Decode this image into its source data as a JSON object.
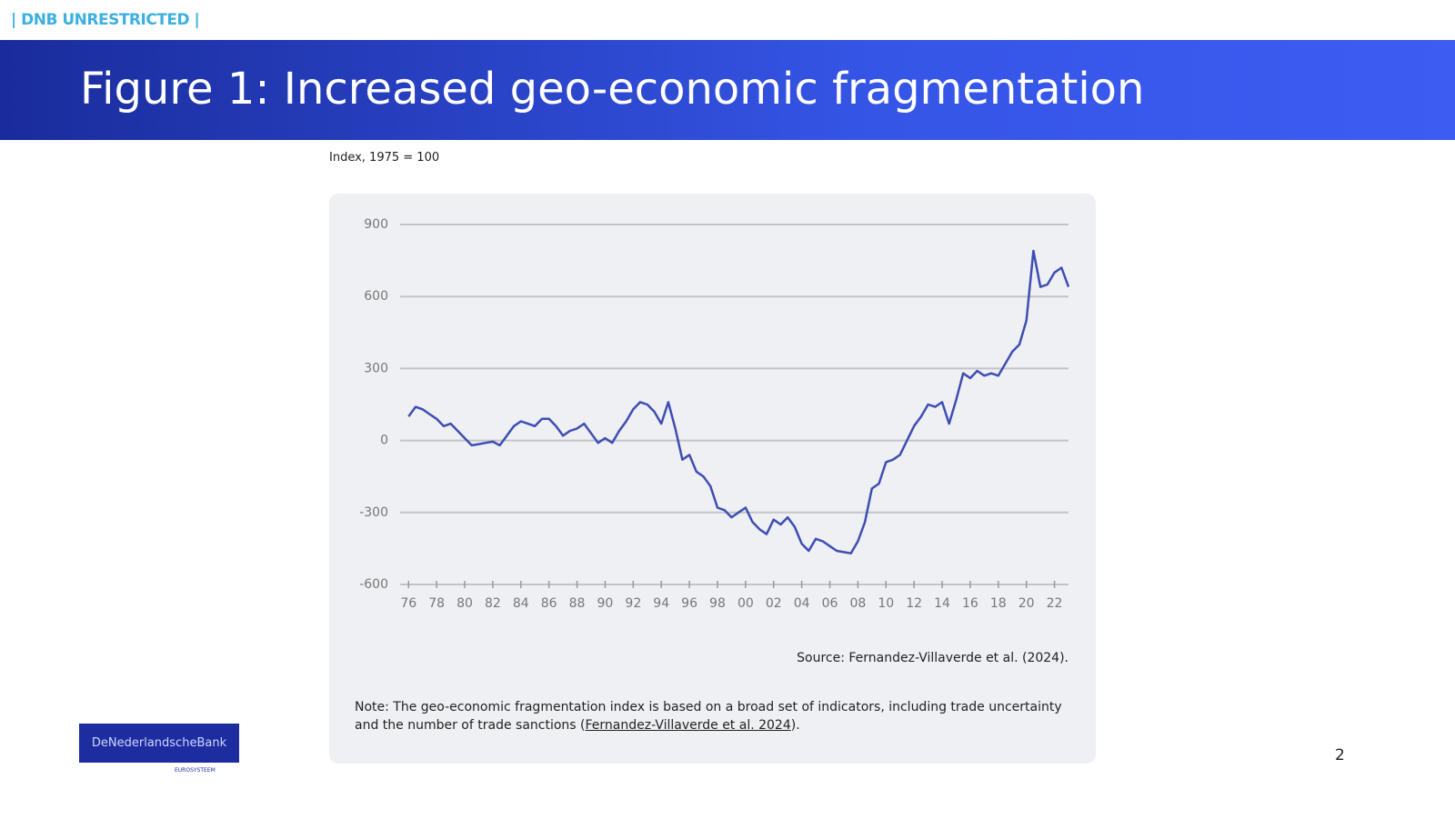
{
  "header": {
    "classification": "| DNB UNRESTRICTED |",
    "title": "Figure 1: Increased geo-economic fragmentation"
  },
  "chart_data": {
    "type": "line",
    "y_label": "Index, 1975 = 100",
    "x": [
      1976,
      1976.5,
      1977,
      1977.5,
      1978,
      1978.5,
      1979,
      1979.5,
      1980,
      1980.5,
      1981,
      1981.5,
      1982,
      1982.5,
      1983,
      1983.5,
      1984,
      1984.5,
      1985,
      1985.5,
      1986,
      1986.5,
      1987,
      1987.5,
      1988,
      1988.5,
      1989,
      1989.5,
      1990,
      1990.5,
      1991,
      1991.5,
      1992,
      1992.5,
      1993,
      1993.5,
      1994,
      1994.5,
      1995,
      1995.5,
      1996,
      1996.5,
      1997,
      1997.5,
      1998,
      1998.5,
      1999,
      1999.5,
      2000,
      2000.5,
      2001,
      2001.5,
      2002,
      2002.5,
      2003,
      2003.5,
      2004,
      2004.5,
      2005,
      2005.5,
      2006,
      2006.5,
      2007,
      2007.5,
      2008,
      2008.5,
      2009,
      2009.5,
      2010,
      2010.5,
      2011,
      2011.5,
      2012,
      2012.5,
      2013,
      2013.5,
      2014,
      2014.5,
      2015,
      2015.5,
      2016,
      2016.5,
      2017,
      2017.5,
      2018,
      2018.5,
      2019,
      2019.5,
      2020,
      2020.5,
      2021,
      2021.5,
      2022,
      2022.5,
      2023
    ],
    "series": [
      {
        "name": "Geo-economic fragmentation index",
        "color": "#3d4db3",
        "values": [
          100,
          140,
          130,
          110,
          90,
          60,
          70,
          40,
          10,
          -20,
          -15,
          -10,
          -5,
          -20,
          20,
          60,
          80,
          70,
          60,
          90,
          90,
          60,
          20,
          40,
          50,
          70,
          30,
          -10,
          10,
          -10,
          40,
          80,
          130,
          160,
          150,
          120,
          70,
          160,
          50,
          -80,
          -60,
          -130,
          -150,
          -190,
          -280,
          -290,
          -320,
          -300,
          -280,
          -340,
          -370,
          -390,
          -330,
          -350,
          -320,
          -360,
          -430,
          -460,
          -410,
          -420,
          -440,
          -460,
          -465,
          -470,
          -420,
          -340,
          -200,
          -180,
          -90,
          -80,
          -60,
          0,
          60,
          100,
          150,
          140,
          160,
          70,
          170,
          280,
          260,
          290,
          270,
          280,
          270,
          320,
          370,
          400,
          500,
          790,
          640,
          650,
          700,
          720,
          640
        ]
      }
    ],
    "xlim": [
      1975.4,
      2023.0
    ],
    "xticks": [
      {
        "value": 1976,
        "label": "76"
      },
      {
        "value": 1978,
        "label": "78"
      },
      {
        "value": 1980,
        "label": "80"
      },
      {
        "value": 1982,
        "label": "82"
      },
      {
        "value": 1984,
        "label": "84"
      },
      {
        "value": 1986,
        "label": "86"
      },
      {
        "value": 1988,
        "label": "88"
      },
      {
        "value": 1990,
        "label": "90"
      },
      {
        "value": 1992,
        "label": "92"
      },
      {
        "value": 1994,
        "label": "94"
      },
      {
        "value": 1996,
        "label": "96"
      },
      {
        "value": 1998,
        "label": "98"
      },
      {
        "value": 2000,
        "label": "00"
      },
      {
        "value": 2002,
        "label": "02"
      },
      {
        "value": 2004,
        "label": "04"
      },
      {
        "value": 2006,
        "label": "06"
      },
      {
        "value": 2008,
        "label": "08"
      },
      {
        "value": 2010,
        "label": "10"
      },
      {
        "value": 2012,
        "label": "12"
      },
      {
        "value": 2014,
        "label": "14"
      },
      {
        "value": 2016,
        "label": "16"
      },
      {
        "value": 2018,
        "label": "18"
      },
      {
        "value": 2020,
        "label": "20"
      },
      {
        "value": 2022,
        "label": "22"
      }
    ],
    "ylim": [
      -600,
      900
    ],
    "yticks": [
      900,
      600,
      300,
      0,
      -300,
      -600
    ],
    "grid": true,
    "source": "Source: Fernandez-Villaverde et al. (2024)."
  },
  "note": {
    "text": "Note: The geo-economic fragmentation index is based on a broad set of indicators, including trade uncertainty and the number of trade sanctions (",
    "link": "Fernandez-Villaverde et al. 2024",
    "end": ")."
  },
  "logo": {
    "name": "DeNederlandscheBank",
    "tagline": "EUROSYSTEEM"
  },
  "page_number": "2"
}
